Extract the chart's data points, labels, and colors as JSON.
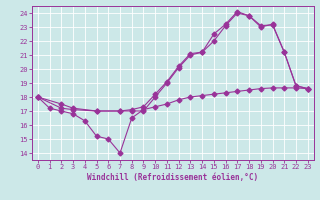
{
  "background_color": "#cce8e8",
  "grid_color": "#aadddd",
  "line_color": "#993399",
  "xlabel": "Windchill (Refroidissement éolien,°C)",
  "xlim": [
    -0.5,
    23.5
  ],
  "ylim": [
    13.5,
    24.5
  ],
  "xticks": [
    0,
    1,
    2,
    3,
    4,
    5,
    6,
    7,
    8,
    9,
    10,
    11,
    12,
    13,
    14,
    15,
    16,
    17,
    18,
    19,
    20,
    21,
    22,
    23
  ],
  "yticks": [
    14,
    15,
    16,
    17,
    18,
    19,
    20,
    21,
    22,
    23,
    24
  ],
  "line1_x": [
    0,
    1,
    2,
    3,
    4,
    5,
    6,
    7,
    8,
    9,
    10,
    11,
    12,
    13,
    14,
    15,
    16,
    17,
    18,
    19,
    20,
    21,
    22,
    23
  ],
  "line1_y": [
    18,
    17.2,
    17.0,
    16.8,
    16.3,
    15.2,
    15.0,
    14.0,
    16.5,
    17.1,
    17.3,
    17.5,
    17.8,
    18.0,
    18.1,
    18.2,
    18.3,
    18.4,
    18.5,
    18.6,
    18.65,
    18.65,
    18.65,
    18.6
  ],
  "line2_x": [
    0,
    2,
    3,
    5,
    7,
    8,
    9,
    10,
    11,
    12,
    13,
    14,
    15,
    16,
    17,
    18,
    19,
    20,
    21,
    22,
    23
  ],
  "line2_y": [
    18,
    17.5,
    17.2,
    17.0,
    17.0,
    17.1,
    17.3,
    18.2,
    19.1,
    20.2,
    21.1,
    21.2,
    22.5,
    23.2,
    24.1,
    23.8,
    23.1,
    23.15,
    21.2,
    18.8,
    18.6
  ],
  "line3_x": [
    0,
    2,
    3,
    5,
    7,
    8,
    9,
    10,
    11,
    12,
    13,
    14,
    15,
    16,
    17,
    18,
    19,
    20,
    21,
    22,
    23
  ],
  "line3_y": [
    18,
    17.2,
    17.1,
    17.0,
    17.0,
    17.0,
    17.0,
    18.0,
    19.0,
    20.1,
    21.0,
    21.2,
    22.0,
    23.1,
    24.0,
    23.8,
    23.0,
    23.2,
    21.2,
    18.8,
    18.6
  ],
  "marker": "D",
  "markersize": 2.5,
  "linewidth": 0.8,
  "tick_labelsize": 5,
  "xlabel_fontsize": 5.5
}
